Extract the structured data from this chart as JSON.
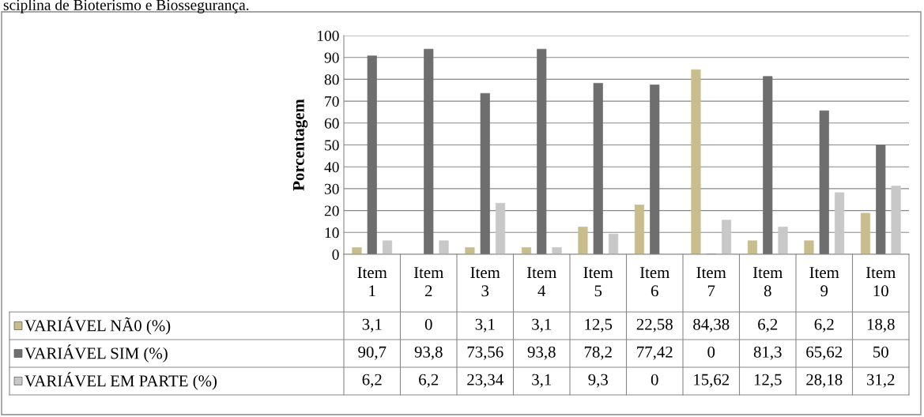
{
  "chart_data": {
    "type": "bar",
    "ylabel": "Porcentagem",
    "annotations": [
      "sciplina de Bioterismo e Biossegurança."
    ],
    "categories": [
      "Item 1",
      "Item 2",
      "Item 3",
      "Item 4",
      "Item 5",
      "Item 6",
      "Item 7",
      "Item 8",
      "Item 9",
      "Item 10"
    ],
    "series": [
      {
        "name": "VARIÁVEL NÃ0 (%)",
        "color": "#c8bd8c",
        "values": [
          3.1,
          0,
          3.1,
          3.1,
          12.5,
          22.58,
          84.38,
          6.2,
          6.2,
          18.8
        ],
        "value_labels": [
          "3,1",
          "0",
          "3,1",
          "3,1",
          "12,5",
          "22,58",
          "84,38",
          "6,2",
          "6,2",
          "18,8"
        ]
      },
      {
        "name": "VARIÁVEL SIM (%)",
        "color": "#6e6e6e",
        "values": [
          90.7,
          93.8,
          73.56,
          93.8,
          78.2,
          77.42,
          0,
          81.3,
          65.62,
          50
        ],
        "value_labels": [
          "90,7",
          "93,8",
          "73,56",
          "93,8",
          "78,2",
          "77,42",
          "0",
          "81,3",
          "65,62",
          "50"
        ]
      },
      {
        "name": "VARIÁVEL EM PARTE (%)",
        "color": "#c8c8c8",
        "values": [
          6.2,
          6.2,
          23.34,
          3.1,
          9.3,
          0,
          15.62,
          12.5,
          28.18,
          31.2
        ],
        "value_labels": [
          "6,2",
          "6,2",
          "23,34",
          "3,1",
          "9,3",
          "0",
          "15,62",
          "12,5",
          "28,18",
          "31,2"
        ]
      }
    ],
    "ylim": [
      0,
      100
    ],
    "yticks": [
      0,
      10,
      20,
      30,
      40,
      50,
      60,
      70,
      80,
      90,
      100
    ],
    "grid": "y",
    "legend": "bottom"
  }
}
